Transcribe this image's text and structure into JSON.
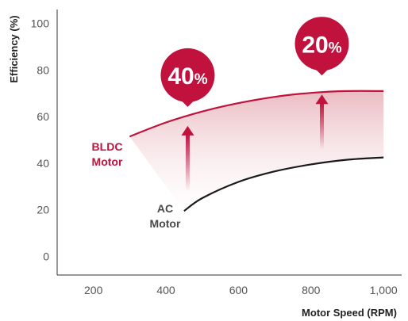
{
  "chart_data": {
    "type": "line",
    "xlabel": "Motor Speed (RPM)",
    "ylabel": "Efficiency (%)",
    "xlim": [
      100,
      1050
    ],
    "ylim": [
      -8,
      106
    ],
    "x_ticks": [
      {
        "value": 200,
        "label": "200"
      },
      {
        "value": 400,
        "label": "400"
      },
      {
        "value": 600,
        "label": "600"
      },
      {
        "value": 800,
        "label": "800"
      },
      {
        "value": 1000,
        "label": "1,000"
      }
    ],
    "y_ticks": [
      {
        "value": 0,
        "label": "0"
      },
      {
        "value": 20,
        "label": "20"
      },
      {
        "value": 40,
        "label": "40"
      },
      {
        "value": 60,
        "label": "60"
      },
      {
        "value": 80,
        "label": "80"
      },
      {
        "value": 100,
        "label": "100"
      }
    ],
    "grid": false,
    "series": [
      {
        "key": "bldc",
        "name_lines": [
          "BLDC",
          "Motor"
        ],
        "color": "#c0123c",
        "x": [
          300,
          400,
          500,
          600,
          700,
          800,
          900,
          1000
        ],
        "y": [
          51.5,
          57.5,
          62.2,
          65.8,
          68.5,
          70.2,
          71.0,
          71.0
        ]
      },
      {
        "key": "ac",
        "name_lines": [
          "AC",
          "Motor"
        ],
        "color": "#1a1a1a",
        "x": [
          450,
          500,
          600,
          700,
          800,
          900,
          1000
        ],
        "y": [
          19.5,
          25.0,
          32.0,
          36.5,
          39.5,
          41.5,
          42.5
        ]
      }
    ],
    "annotations": [
      {
        "number": "40",
        "unit": "%",
        "x": 460,
        "from_y": 28,
        "to_y": 56,
        "color": "#c0123c"
      },
      {
        "number": "20",
        "unit": "%",
        "x": 830,
        "from_y": 46,
        "to_y": 69.5,
        "color": "#c0123c"
      }
    ]
  }
}
